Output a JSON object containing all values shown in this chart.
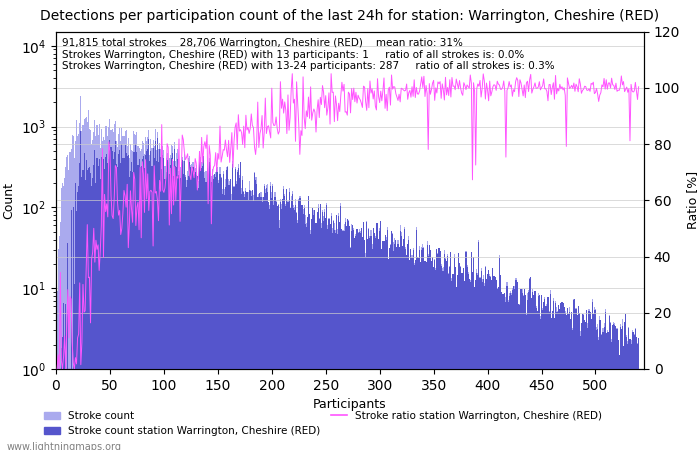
{
  "title": "Detections per participation count of the last 24h for station: Warrington, Cheshire (RED)",
  "annotation_line1": "91,815 total strokes    28,706 Warrington, Cheshire (RED)    mean ratio: 31%",
  "annotation_line2": "Strokes Warrington, Cheshire (RED) with 13 participants: 1     ratio of all strokes is: 0.0%",
  "annotation_line3": "Strokes Warrington, Cheshire (RED) with 13-24 participants: 287     ratio of all strokes is: 0.3%",
  "xlabel": "Participants",
  "ylabel_left": "Count",
  "ylabel_right": "Ratio [%]",
  "xlim": [
    0,
    545
  ],
  "ylim_right": [
    0,
    120
  ],
  "legend_label1": "Stroke count",
  "legend_label2": "Stroke count station Warrington, Cheshire (RED)",
  "legend_label3": "Stroke ratio station Warrington, Cheshire (RED)",
  "color_total": "#aaaaee",
  "color_station": "#5555cc",
  "color_ratio": "#ff55ff",
  "watermark": "www.lightningmaps.org",
  "grid_color": "#cccccc",
  "bg_color": "#ffffff",
  "title_fontsize": 10,
  "annotation_fontsize": 7.5,
  "axis_label_fontsize": 9
}
